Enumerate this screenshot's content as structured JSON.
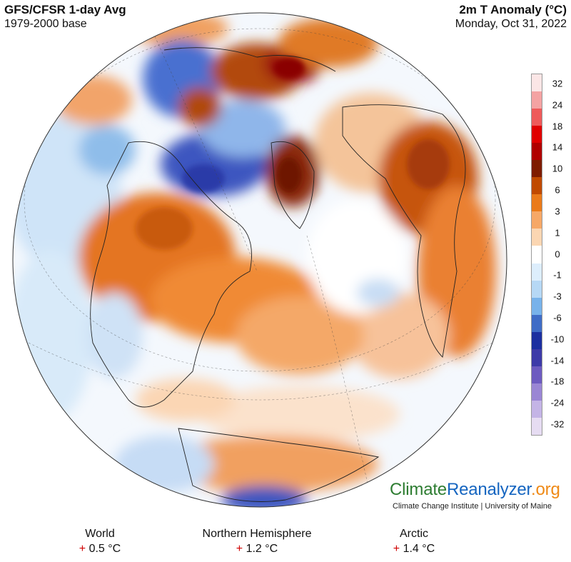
{
  "header": {
    "title": "GFS/CFSR 1-day Avg",
    "subtitle": "1979-2000 base",
    "variable": "2m T Anomaly (°C)",
    "date": "Monday, Oct 31, 2022"
  },
  "legend": {
    "labels": [
      "32",
      "24",
      "18",
      "14",
      "10",
      "6",
      "3",
      "1",
      "0",
      "-1",
      "-3",
      "-6",
      "-10",
      "-14",
      "-18",
      "-24",
      "-32"
    ],
    "colors": [
      "#fbe6e6",
      "#f4a3a3",
      "#ee5a5a",
      "#e00000",
      "#b00000",
      "#7e1c00",
      "#c04a00",
      "#ea7b1a",
      "#f6a867",
      "#fbd6b2",
      "#ffffff",
      "#ddeefc",
      "#b6d8f5",
      "#78b2ea",
      "#3f6cc6",
      "#1c2fa0",
      "#3d3aa8",
      "#6d5bc0",
      "#9a86d4",
      "#c4b4e6",
      "#e6dcf2"
    ]
  },
  "branding": {
    "name_part1": "Climate",
    "name_part2": "Reanalyzer",
    "name_part3": ".org",
    "subtitle": "Climate Change Institute | University of Maine"
  },
  "stats": [
    {
      "region": "World",
      "sign": "+",
      "value": "0.5 °C"
    },
    {
      "region": "Northern Hemisphere",
      "sign": "+",
      "value": "1.2 °C"
    },
    {
      "region": "Arctic",
      "sign": "+",
      "value": "1.4 °C"
    }
  ]
}
